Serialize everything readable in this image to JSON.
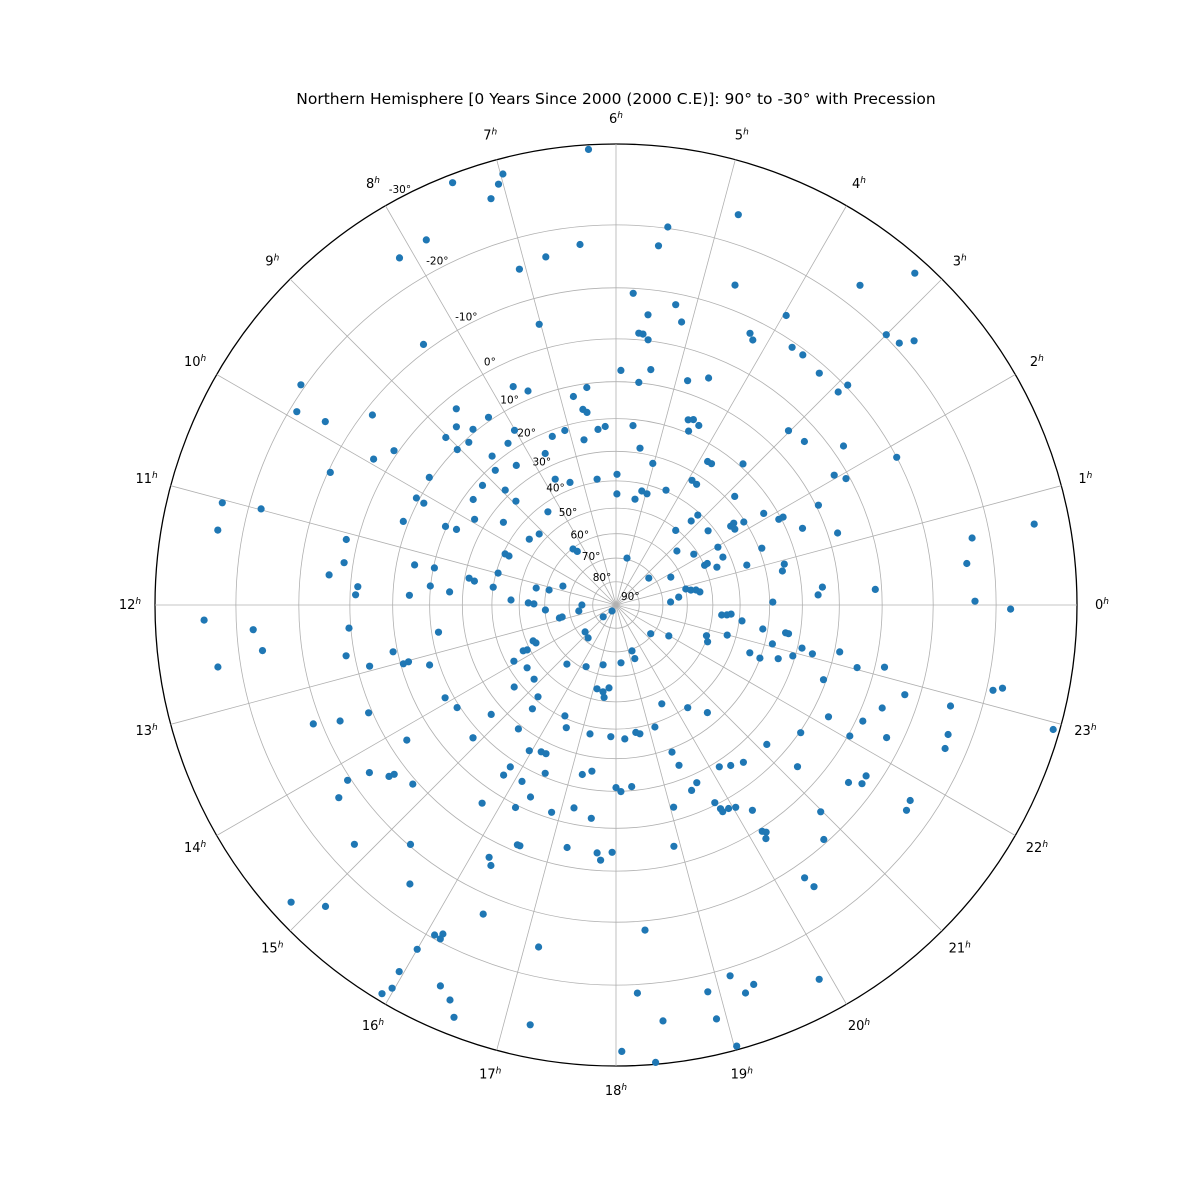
{
  "title": "Northern Hemisphere [0 Years Since 2000 (2000 C.E)]: 90° to -30° with Precession",
  "chart_data": {
    "type": "scatter",
    "subtype": "polar-star-chart",
    "title": "Northern Hemisphere [0 Years Since 2000 (2000 C.E)]: 90° to -30° with Precession",
    "projection": "stereographic",
    "angular_axis": {
      "unit": "hours-right-ascension",
      "direction": "counterclockwise",
      "zero_position": "right",
      "tick_labels": [
        "0h",
        "1h",
        "2h",
        "3h",
        "4h",
        "5h",
        "6h",
        "7h",
        "8h",
        "9h",
        "10h",
        "11h",
        "12h",
        "13h",
        "14h",
        "15h",
        "16h",
        "17h",
        "18h",
        "19h",
        "20h",
        "21h",
        "22h",
        "23h"
      ]
    },
    "radial_axis": {
      "unit": "degrees-declination",
      "center_value": 90,
      "edge_value": -30,
      "tick_values": [
        -30,
        -20,
        -10,
        0,
        10,
        20,
        30,
        40,
        50,
        60,
        70,
        80,
        90
      ],
      "tick_labels": [
        "-30°",
        "-20°",
        "-10°",
        "0°",
        "10°",
        "20°",
        "30°",
        "40°",
        "50°",
        "60°",
        "70°",
        "80°",
        "90°"
      ],
      "label_angle_deg": 117.5
    },
    "grid": true,
    "grid_color": "#b0b0b0",
    "outline_color": "#000000",
    "point_color": "#1f77b4",
    "stars_format": [
      "ra_hours",
      "dec_degrees"
    ],
    "stars": [
      [
        7.41,
        -29.1
      ],
      [
        7.83,
        -24.2
      ],
      [
        8.13,
        -23.9
      ],
      [
        8.43,
        -11.2
      ],
      [
        9.67,
        -20.6
      ],
      [
        9.92,
        -19.0
      ],
      [
        9.85,
        -14.5
      ],
      [
        9.47,
        -8.5
      ],
      [
        8.61,
        2.9
      ],
      [
        8.79,
        6.1
      ],
      [
        9.03,
        6.2
      ],
      [
        9.68,
        -0.9
      ],
      [
        9.04,
        10.3
      ],
      [
        6.23,
        -29.5
      ],
      [
        6.98,
        -28.3
      ],
      [
        7.04,
        -27.3
      ],
      [
        7.14,
        -25.9
      ],
      [
        4.84,
        -23.9
      ],
      [
        5.48,
        -20.2
      ],
      [
        5.55,
        -17.3
      ],
      [
        6.38,
        -17.4
      ],
      [
        6.76,
        -16.3
      ],
      [
        7.07,
        -15.4
      ],
      [
        4.64,
        -14.1
      ],
      [
        5.79,
        -9.1
      ],
      [
        5.25,
        -8.0
      ],
      [
        5.58,
        -5.3
      ],
      [
        5.13,
        -5.0
      ],
      [
        4.25,
        -7.4
      ],
      [
        4.18,
        -6.5
      ],
      [
        5.68,
        -1.4
      ],
      [
        5.62,
        -1.3
      ],
      [
        5.54,
        -0.2
      ],
      [
        7.02,
        -5.1
      ],
      [
        5.92,
        7.2
      ],
      [
        5.44,
        6.4
      ],
      [
        4.82,
        7.0
      ],
      [
        4.52,
        4.7
      ],
      [
        5.61,
        9.9
      ],
      [
        7.68,
        5.6
      ],
      [
        7.49,
        8.0
      ],
      [
        6.51,
        11.0
      ],
      [
        6.77,
        12.7
      ],
      [
        6.64,
        16.6
      ],
      [
        6.57,
        17.6
      ],
      [
        8.28,
        9.1
      ],
      [
        8.61,
        9.2
      ],
      [
        8.01,
        15.6
      ],
      [
        5.64,
        21.8
      ],
      [
        4.58,
        16.5
      ],
      [
        4.49,
        15.9
      ],
      [
        4.35,
        16.8
      ],
      [
        4.49,
        19.4
      ],
      [
        6.39,
        22.9
      ],
      [
        6.23,
        22.2
      ],
      [
        7.09,
        21.3
      ],
      [
        7.38,
        21.8
      ],
      [
        6.73,
        25.4
      ],
      [
        8.25,
        17.7
      ],
      [
        8.81,
        11.0
      ],
      [
        5.42,
        28.4
      ],
      [
        3.2,
        -28.4
      ],
      [
        3.51,
        -23.0
      ],
      [
        3.97,
        -13.2
      ],
      [
        3.0,
        -20.3
      ],
      [
        2.85,
        -20.8
      ],
      [
        2.77,
        -22.5
      ],
      [
        3.71,
        -9.1
      ],
      [
        3.55,
        -9.1
      ],
      [
        3.25,
        -8.4
      ],
      [
        2.9,
        -10.4
      ],
      [
        2.92,
        -8.3
      ],
      [
        3.02,
        4.7
      ],
      [
        2.73,
        3.7
      ],
      [
        2.33,
        -2.4
      ],
      [
        3.2,
        19.0
      ],
      [
        9.93,
        -3.5
      ],
      [
        10.34,
        -9.6
      ],
      [
        9.71,
        9.3
      ],
      [
        10.12,
        9.2
      ],
      [
        10.14,
        11.5
      ],
      [
        11.03,
        -23.6
      ],
      [
        10.99,
        -18.2
      ],
      [
        10.57,
        8.7
      ],
      [
        10.35,
        19.6
      ],
      [
        10.31,
        22.9
      ],
      [
        11.29,
        -23.4
      ],
      [
        11.09,
        -2.4
      ],
      [
        11.41,
        -1.9
      ],
      [
        11.25,
        14.7
      ],
      [
        11.23,
        20.3
      ],
      [
        11.6,
        -4.6
      ],
      [
        11.61,
        19.9
      ],
      [
        11.73,
        1.6
      ],
      [
        11.85,
        1.2
      ],
      [
        11.7,
        25.8
      ],
      [
        11.82,
        14.3
      ],
      [
        12.14,
        -24.3
      ],
      [
        12.26,
        -17.6
      ],
      [
        12.33,
        -0.4
      ],
      [
        12.49,
        -16.5
      ],
      [
        12.71,
        -1.8
      ],
      [
        12.79,
        8.9
      ],
      [
        12.59,
        -23.1
      ],
      [
        13.03,
        10.7
      ],
      [
        13.02,
        12.1
      ],
      [
        13.19,
        17.3
      ],
      [
        12.93,
        2.7
      ],
      [
        12.58,
        22.0
      ],
      [
        13.9,
        17.7
      ],
      [
        14.19,
        19.2
      ],
      [
        13.57,
        -0.8
      ],
      [
        13.52,
        -6.7
      ],
      [
        13.43,
        -11.4
      ],
      [
        14.19,
        3.8
      ],
      [
        14.86,
        17.5
      ],
      [
        7.67,
        25.7
      ],
      [
        8.65,
        17.9
      ],
      [
        8.37,
        24.4
      ],
      [
        8.79,
        21.6
      ],
      [
        3.83,
        24.8
      ],
      [
        3.73,
        24.7
      ],
      [
        5.03,
        32.4
      ],
      [
        7.72,
        34.6
      ],
      [
        7.37,
        37.6
      ],
      [
        5.97,
        37.7
      ],
      [
        3.91,
        32.5
      ],
      [
        3.75,
        32.8
      ],
      [
        9.21,
        22.1
      ],
      [
        8.93,
        28.1
      ],
      [
        9.57,
        22.6
      ],
      [
        6.57,
        38.9
      ],
      [
        5.15,
        42.6
      ],
      [
        4.96,
        43.1
      ],
      [
        5.97,
        44.7
      ],
      [
        5.32,
        46.0
      ],
      [
        4.43,
        39.6
      ],
      [
        2.83,
        27.7
      ],
      [
        9.92,
        26.3
      ],
      [
        9.58,
        34.6
      ],
      [
        8.41,
        43.1
      ],
      [
        3.18,
        40.9
      ],
      [
        3.21,
        44.1
      ],
      [
        2.3,
        34.8
      ],
      [
        2.32,
        33.4
      ],
      [
        2.17,
        34.2
      ],
      [
        2.2,
        30.4
      ],
      [
        2.12,
        23.7
      ],
      [
        3.42,
        50.5
      ],
      [
        2.59,
        42.1
      ],
      [
        1.42,
        29.1
      ],
      [
        1.13,
        35.6
      ],
      [
        1.97,
        42.5
      ],
      [
        2.21,
        51.5
      ],
      [
        2.77,
        56.0
      ],
      [
        8.5,
        60.3
      ],
      [
        8.39,
        62.1
      ],
      [
        8.93,
        33.1
      ],
      [
        10.36,
        42.3
      ],
      [
        10.35,
        40.7
      ],
      [
        10.99,
        40.7
      ],
      [
        9.52,
        45.5
      ],
      [
        9.15,
        47.1
      ],
      [
        11.31,
        31.4
      ],
      [
        11.36,
        33.3
      ],
      [
        11.45,
        40.0
      ],
      [
        11.2,
        55.9
      ],
      [
        11.16,
        61.1
      ],
      [
        10.69,
        66.1
      ],
      [
        5.12,
        69.5
      ],
      [
        2.62,
        71.9
      ],
      [
        1.8,
        64.0
      ],
      [
        0.48,
        63.3
      ],
      [
        0.86,
        59.9
      ],
      [
        0.75,
        58.0
      ],
      [
        0.71,
        56.0
      ],
      [
        0.59,
        54.6
      ],
      [
        1.61,
        49.9
      ],
      [
        1.63,
        48.7
      ],
      [
        1.37,
        45.9
      ],
      [
        1.61,
        42.5
      ],
      [
        11.91,
        53.5
      ],
      [
        11.95,
        55.7
      ],
      [
        11.82,
        46.9
      ],
      [
        12.0,
        75.4
      ],
      [
        12.61,
        73.9
      ],
      [
        12.27,
        60.2
      ],
      [
        15.75,
        86.9
      ],
      [
        14.85,
        82.5
      ],
      [
        0.21,
        66.8
      ],
      [
        23.64,
        46.5
      ],
      [
        23.66,
        44.6
      ],
      [
        23.7,
        43.1
      ],
      [
        23.52,
        39.0
      ],
      [
        23.38,
        31.6
      ],
      [
        22.75,
        50.5
      ],
      [
        22.99,
        43.2
      ],
      [
        22.54,
        49.3
      ],
      [
        22.69,
        33.8
      ],
      [
        22.65,
        30.1
      ],
      [
        21.98,
        64.1
      ],
      [
        21.36,
        70.8
      ],
      [
        19.28,
        69.3
      ],
      [
        19.29,
        65.9
      ],
      [
        18.33,
        65.4
      ],
      [
        17.19,
        64.1
      ],
      [
        16.28,
        61.1
      ],
      [
        15.35,
        57.8
      ],
      [
        15.31,
        71.6
      ],
      [
        14.74,
        72.5
      ],
      [
        12.86,
        65.4
      ],
      [
        12.84,
        66.6
      ],
      [
        13.56,
        52.5
      ],
      [
        13.69,
        53.2
      ],
      [
        13.75,
        47.5
      ],
      [
        13.79,
        49.0
      ],
      [
        13.92,
        42.7
      ],
      [
        14.35,
        45.5
      ],
      [
        14.81,
        44.9
      ],
      [
        14.59,
        37.7
      ],
      [
        15.31,
        41.3
      ],
      [
        15.41,
        36.8
      ],
      [
        14.75,
        26.1
      ],
      [
        16.35,
        40.7
      ],
      [
        16.53,
        37.1
      ],
      [
        17.15,
        54.2
      ],
      [
        17.43,
        53.5
      ],
      [
        17.68,
        55.3
      ],
      [
        17.51,
        51.4
      ],
      [
        19.66,
        45.5
      ],
      [
        20.33,
        39.6
      ],
      [
        20.69,
        34.1
      ],
      [
        19.18,
        38.6
      ],
      [
        18.59,
        38.3
      ],
      [
        18.7,
        37.6
      ],
      [
        18.25,
        36.5
      ],
      [
        17.85,
        37.3
      ],
      [
        17.24,
        37.4
      ],
      [
        15.45,
        28.7
      ],
      [
        16.2,
        26.5
      ],
      [
        16.32,
        26.6
      ],
      [
        15.95,
        25.0
      ],
      [
        19.39,
        28.8
      ],
      [
        21.15,
        14.7
      ],
      [
        1.85,
        -10.0
      ],
      [
        2.05,
        2.7
      ],
      [
        1.92,
        0.8
      ],
      [
        1.75,
        9.4
      ],
      [
        1.85,
        20.7
      ],
      [
        1.85,
        19.3
      ],
      [
        1.49,
        15.7
      ],
      [
        1.2,
        7.6
      ],
      [
        0.73,
        -26.0
      ],
      [
        0.71,
        -17.4
      ],
      [
        0.45,
        -16.0
      ],
      [
        0.91,
        23.9
      ],
      [
        0.77,
        24.9
      ],
      [
        0.33,
        14.2
      ],
      [
        0.19,
        15.5
      ],
      [
        0.23,
        1.4
      ],
      [
        0.04,
        -16.9
      ],
      [
        23.96,
        -22.0
      ],
      [
        0.07,
        29.0
      ],
      [
        23.38,
        24.3
      ],
      [
        23.37,
        23.4
      ],
      [
        23.07,
        27.6
      ],
      [
        23.13,
        18.7
      ],
      [
        23.07,
        15.5
      ],
      [
        22.93,
        20.7
      ],
      [
        23.21,
        8.7
      ],
      [
        22.78,
        24.6
      ],
      [
        23.03,
        3.8
      ],
      [
        23.13,
        -2.0
      ],
      [
        22.68,
        10.7
      ],
      [
        22.85,
        -7.3
      ],
      [
        22.59,
        -4.0
      ],
      [
        22.88,
        -15.4
      ],
      [
        23.15,
        -20.9
      ],
      [
        23.19,
        -22.1
      ],
      [
        22.15,
        5.9
      ],
      [
        22.32,
        -1.4
      ],
      [
        21.69,
        9.7
      ],
      [
        22.05,
        -0.4
      ],
      [
        22.26,
        -7.1
      ],
      [
        22.58,
        -16.5
      ],
      [
        22.43,
        -16.9
      ],
      [
        22.94,
        -29.3
      ],
      [
        14.28,
        -6.5
      ],
      [
        14.47,
        -3.8
      ],
      [
        14.49,
        -2.7
      ],
      [
        14.21,
        -10.6
      ],
      [
        14.76,
        -1.0
      ],
      [
        14.32,
        -13.5
      ],
      [
        14.83,
        -16.2
      ],
      [
        15.29,
        -9.7
      ],
      [
        15.57,
        -15.0
      ],
      [
        14.83,
        -27.7
      ],
      [
        15.07,
        -25.1
      ],
      [
        16.08,
        -19.5
      ],
      [
        16.15,
        -18.8
      ],
      [
        16.15,
        -19.6
      ],
      [
        16.0,
        -22.4
      ],
      [
        15.96,
        -26.0
      ],
      [
        15.93,
        -29.2
      ],
      [
        15.98,
        -28.1
      ],
      [
        16.35,
        -25.2
      ],
      [
        16.48,
        -26.3
      ],
      [
        16.57,
        -28.0
      ],
      [
        15.79,
        18.0
      ],
      [
        15.77,
        15.1
      ],
      [
        16.48,
        21.1
      ],
      [
        16.13,
        16.2
      ],
      [
        17.25,
        24.0
      ],
      [
        17.45,
        25.5
      ],
      [
        19.43,
        24.2
      ],
      [
        20.17,
        18.4
      ],
      [
        20.37,
        16.9
      ],
      [
        20.6,
        15.5
      ],
      [
        16.4,
        13.4
      ],
      [
        15.73,
        6.1
      ],
      [
        16.24,
        9.3
      ],
      [
        16.85,
        11.6
      ],
      [
        17.22,
        14.2
      ],
      [
        17.56,
        12.2
      ],
      [
        18.0,
        21.1
      ],
      [
        18.1,
        19.9
      ],
      [
        18.33,
        21.2
      ],
      [
        19.48,
        16.1
      ],
      [
        19.63,
        17.5
      ],
      [
        19.06,
        13.4
      ],
      [
        19.77,
        10.6
      ],
      [
        19.81,
        8.6
      ],
      [
        19.82,
        7.7
      ],
      [
        19.93,
        7.7
      ],
      [
        20.04,
        7.1
      ],
      [
        20.24,
        4.4
      ],
      [
        20.19,
        -0.7
      ],
      [
        20.23,
        -1.3
      ],
      [
        20.18,
        -2.4
      ],
      [
        16.51,
        1.5
      ],
      [
        16.55,
        1.5
      ],
      [
        16.22,
        -3.4
      ],
      [
        16.29,
        -4.7
      ],
      [
        17.24,
        4.2
      ],
      [
        17.71,
        3.9
      ],
      [
        17.94,
        4.2
      ],
      [
        17.77,
        2.3
      ],
      [
        18.9,
        4.0
      ],
      [
        16.45,
        -13.3
      ],
      [
        17.15,
        -15.6
      ],
      [
        18.34,
        -11.6
      ],
      [
        18.21,
        -21.2
      ],
      [
        18.43,
        -25.1
      ],
      [
        17.23,
        -26.3
      ],
      [
        18.05,
        -28.4
      ],
      [
        18.33,
        -29.8
      ],
      [
        18.89,
        -22.4
      ],
      [
        18.91,
        -26.0
      ],
      [
        19.14,
        -21.1
      ],
      [
        19.23,
        -23.9
      ],
      [
        19.33,
        -23.2
      ],
      [
        19.02,
        -29.6
      ],
      [
        14.86,
        17.5
      ],
      [
        21.22,
        5.2
      ],
      [
        21.51,
        -5.4
      ],
      [
        21.6,
        -7.6
      ],
      [
        21.71,
        -7.4
      ],
      [
        21.76,
        -16.0
      ],
      [
        21.65,
        -16.4
      ],
      [
        20.98,
        -5.1
      ],
      [
        20.77,
        -9.3
      ],
      [
        20.31,
        -12.5
      ],
      [
        20.34,
        -14.6
      ],
      [
        19.9,
        -26.0
      ]
    ]
  }
}
